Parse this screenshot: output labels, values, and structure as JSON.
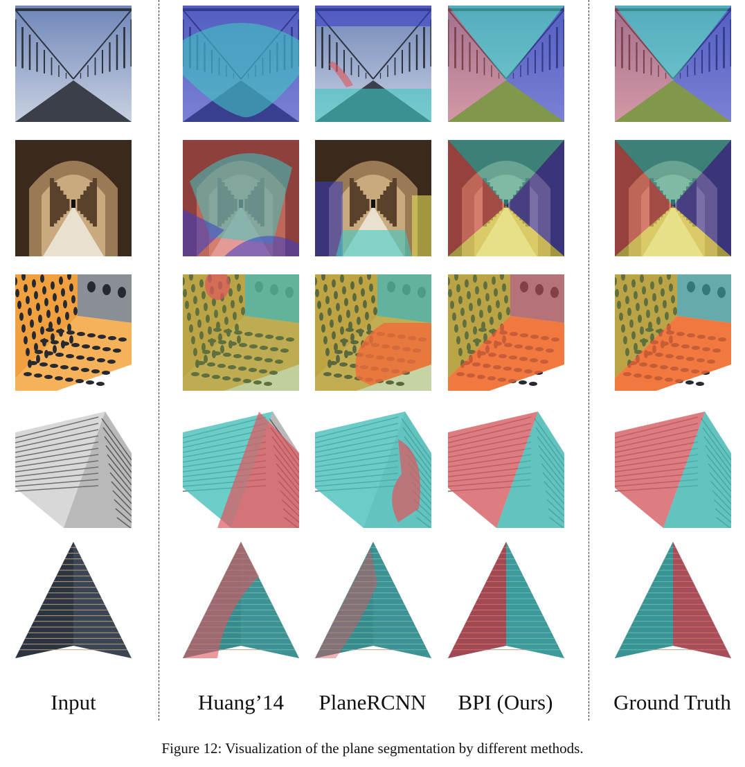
{
  "columns": [
    {
      "key": "input",
      "label": "Input"
    },
    {
      "key": "huang",
      "label": "Huang’14"
    },
    {
      "key": "planercnn",
      "label": "PlaneRCNN"
    },
    {
      "key": "bpi",
      "label": "BPI (Ours)"
    },
    {
      "key": "gt",
      "label": "Ground Truth"
    }
  ],
  "rows": [
    {
      "key": "glass-corridor"
    },
    {
      "key": "arched-corridor"
    },
    {
      "key": "dotted-building"
    },
    {
      "key": "woven-facade"
    },
    {
      "key": "tower-corner"
    }
  ],
  "colors": {
    "blue": "#3a3ec8",
    "cyan": "#3fc7c2",
    "red": "#e0555c",
    "yellow": "#e8e05a",
    "olive": "#8ea84a",
    "orange": "#f06a3a"
  },
  "caption": "Figure 12: Visualization of the plane segmentation by different methods."
}
